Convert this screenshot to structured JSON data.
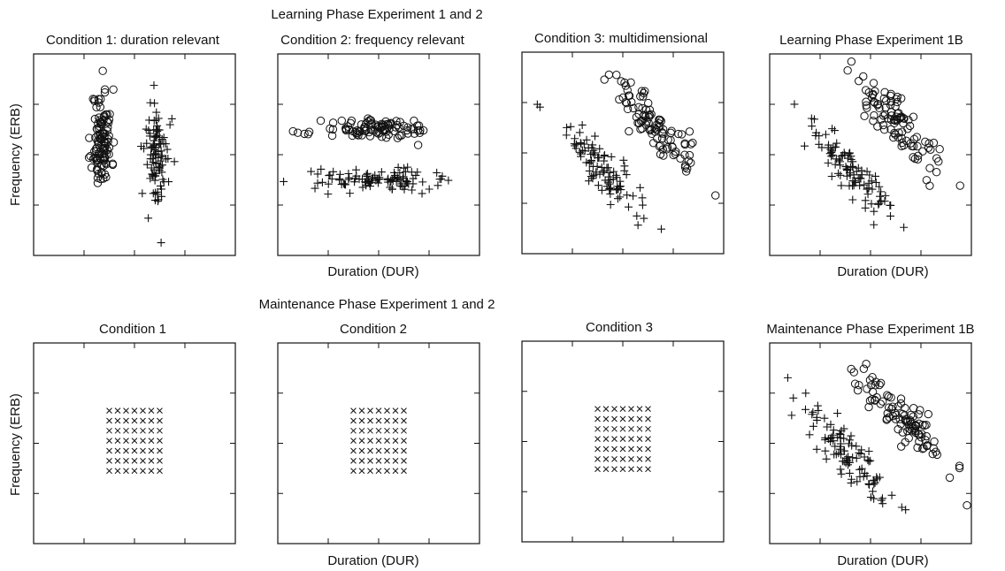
{
  "figure": {
    "top_group_title": "Learning Phase Experiment 1 and 2",
    "bottom_group_title": "Maintenance Phase Experiment 1 and 2",
    "y_axis_label": "Frequency (ERB)",
    "x_axis_label": "Duration (DUR)"
  },
  "chart_data": [
    {
      "id": "p1",
      "type": "scatter",
      "title": "Condition 1: duration relevant",
      "xlabel": "",
      "ylabel": "Frequency (ERB)",
      "xlim": [
        0,
        4
      ],
      "ylim": [
        0,
        4
      ],
      "grid": false,
      "series": [
        {
          "marker": "circle",
          "cluster": {
            "cx": 1.35,
            "cy": 2.3,
            "sx": 0.1,
            "sy": 0.5,
            "rho": 0,
            "n": 110,
            "seed": 11
          }
        },
        {
          "marker": "plus",
          "cluster": {
            "cx": 2.45,
            "cy": 1.95,
            "sx": 0.12,
            "sy": 0.55,
            "rho": 0,
            "n": 95,
            "seed": 12
          }
        }
      ]
    },
    {
      "id": "p2",
      "type": "scatter",
      "title": "Condition 2: frequency relevant",
      "xlabel": "Duration (DUR)",
      "ylabel": "",
      "xlim": [
        0,
        4
      ],
      "ylim": [
        0,
        4
      ],
      "grid": false,
      "series": [
        {
          "marker": "circle",
          "cluster": {
            "cx": 2.0,
            "cy": 2.5,
            "sx": 0.55,
            "sy": 0.1,
            "rho": 0,
            "n": 100,
            "seed": 21
          }
        },
        {
          "marker": "plus",
          "cluster": {
            "cx": 1.9,
            "cy": 1.5,
            "sx": 0.6,
            "sy": 0.1,
            "rho": 0,
            "n": 100,
            "seed": 22
          }
        }
      ]
    },
    {
      "id": "p3",
      "type": "scatter",
      "title": "Condition 3: multidimensional",
      "xlabel": "",
      "ylabel": "",
      "xlim": [
        0,
        4
      ],
      "ylim": [
        0,
        4
      ],
      "grid": false,
      "series": [
        {
          "marker": "circle",
          "cluster": {
            "cx": 2.6,
            "cy": 2.55,
            "sx": 0.45,
            "sy": 0.5,
            "rho": -0.88,
            "n": 100,
            "seed": 31
          }
        },
        {
          "marker": "plus",
          "cluster": {
            "cx": 1.55,
            "cy": 1.75,
            "sx": 0.45,
            "sy": 0.5,
            "rho": -0.88,
            "n": 100,
            "seed": 32
          }
        }
      ]
    },
    {
      "id": "p4",
      "type": "scatter",
      "title": "Learning Phase Experiment 1B",
      "xlabel": "Duration (DUR)",
      "ylabel": "",
      "xlim": [
        0,
        4
      ],
      "ylim": [
        0,
        4
      ],
      "grid": false,
      "series": [
        {
          "marker": "circle",
          "cluster": {
            "cx": 2.6,
            "cy": 2.55,
            "sx": 0.45,
            "sy": 0.5,
            "rho": -0.88,
            "n": 100,
            "seed": 41
          }
        },
        {
          "marker": "plus",
          "cluster": {
            "cx": 1.55,
            "cy": 1.75,
            "sx": 0.45,
            "sy": 0.5,
            "rho": -0.88,
            "n": 100,
            "seed": 42
          }
        }
      ]
    },
    {
      "id": "p5",
      "type": "scatter",
      "title": "Condition 1",
      "xlabel": "",
      "ylabel": "Frequency (ERB)",
      "xlim": [
        0,
        4
      ],
      "ylim": [
        0,
        4
      ],
      "grid": false,
      "series": [
        {
          "marker": "x",
          "grid": {
            "cols": 7,
            "rows": 7,
            "x0": 1.5,
            "x1": 2.5,
            "y0": 2.65,
            "y1": 1.45
          }
        }
      ]
    },
    {
      "id": "p6",
      "type": "scatter",
      "title": "Condition 2",
      "xlabel": "Duration (DUR)",
      "ylabel": "",
      "xlim": [
        0,
        4
      ],
      "ylim": [
        0,
        4
      ],
      "grid": false,
      "series": [
        {
          "marker": "x",
          "grid": {
            "cols": 7,
            "rows": 7,
            "x0": 1.5,
            "x1": 2.5,
            "y0": 2.65,
            "y1": 1.45
          }
        }
      ]
    },
    {
      "id": "p7",
      "type": "scatter",
      "title": "Condition 3",
      "xlabel": "",
      "ylabel": "",
      "xlim": [
        0,
        4
      ],
      "ylim": [
        0,
        4
      ],
      "grid": false,
      "series": [
        {
          "marker": "x",
          "grid": {
            "cols": 7,
            "rows": 7,
            "x0": 1.5,
            "x1": 2.5,
            "y0": 2.65,
            "y1": 1.45
          }
        }
      ]
    },
    {
      "id": "p8",
      "type": "scatter",
      "title": "Maintenance Phase Experiment 1B",
      "xlabel": "Duration (DUR)",
      "ylabel": "",
      "xlim": [
        0,
        4
      ],
      "ylim": [
        0,
        4
      ],
      "grid": false,
      "series": [
        {
          "marker": "circle",
          "cluster": {
            "cx": 2.6,
            "cy": 2.55,
            "sx": 0.45,
            "sy": 0.5,
            "rho": -0.88,
            "n": 100,
            "seed": 81
          }
        },
        {
          "marker": "plus",
          "cluster": {
            "cx": 1.55,
            "cy": 1.75,
            "sx": 0.45,
            "sy": 0.5,
            "rho": -0.88,
            "n": 100,
            "seed": 82
          }
        }
      ]
    }
  ]
}
